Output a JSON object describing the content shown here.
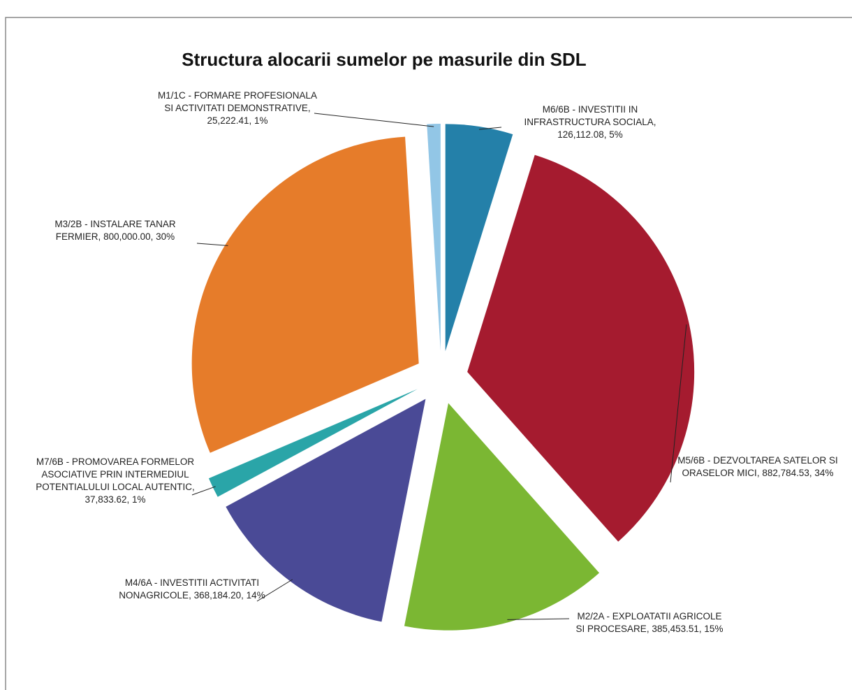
{
  "chart_data": {
    "type": "pie",
    "title": "Structura alocarii sumelor pe masurile din SDL",
    "categories": [
      "M6/6B - INVESTITII IN INFRASTRUCTURA SOCIALA",
      "M5/6B - DEZVOLTAREA SATELOR SI ORASELOR MICI",
      "M2/2A - EXPLOATATII AGRICOLE SI PROCESARE",
      "M4/6A - INVESTITII ACTIVITATI NONAGRICOLE",
      "M7/6B - PROMOVAREA FORMELOR ASOCIATIVE PRIN INTERMEDIUL POTENTIALULUI LOCAL AUTENTIC",
      "M3/2B - INSTALARE TANAR FERMIER",
      "M1/1C - FORMARE PROFESIONALA SI ACTIVITATI DEMONSTRATIVE"
    ],
    "values": [
      126112.08,
      882784.53,
      385453.51,
      368184.2,
      37833.62,
      800000.0,
      25222.41
    ],
    "value_labels": [
      "126,112.08",
      "882,784.53",
      "385,453.51",
      "368,184.20",
      "37,833.62",
      "800,000.00",
      "25,222.41"
    ],
    "percentages": [
      5,
      34,
      15,
      14,
      1,
      30,
      1
    ],
    "percentage_labels": [
      "5%",
      "34%",
      "15%",
      "14%",
      "1%",
      "30%",
      "1%"
    ],
    "colors": [
      "#2480a9",
      "#a51b2f",
      "#7bb733",
      "#4a4a96",
      "#2aa5a8",
      "#e67c2a",
      "#92c6e6"
    ]
  }
}
